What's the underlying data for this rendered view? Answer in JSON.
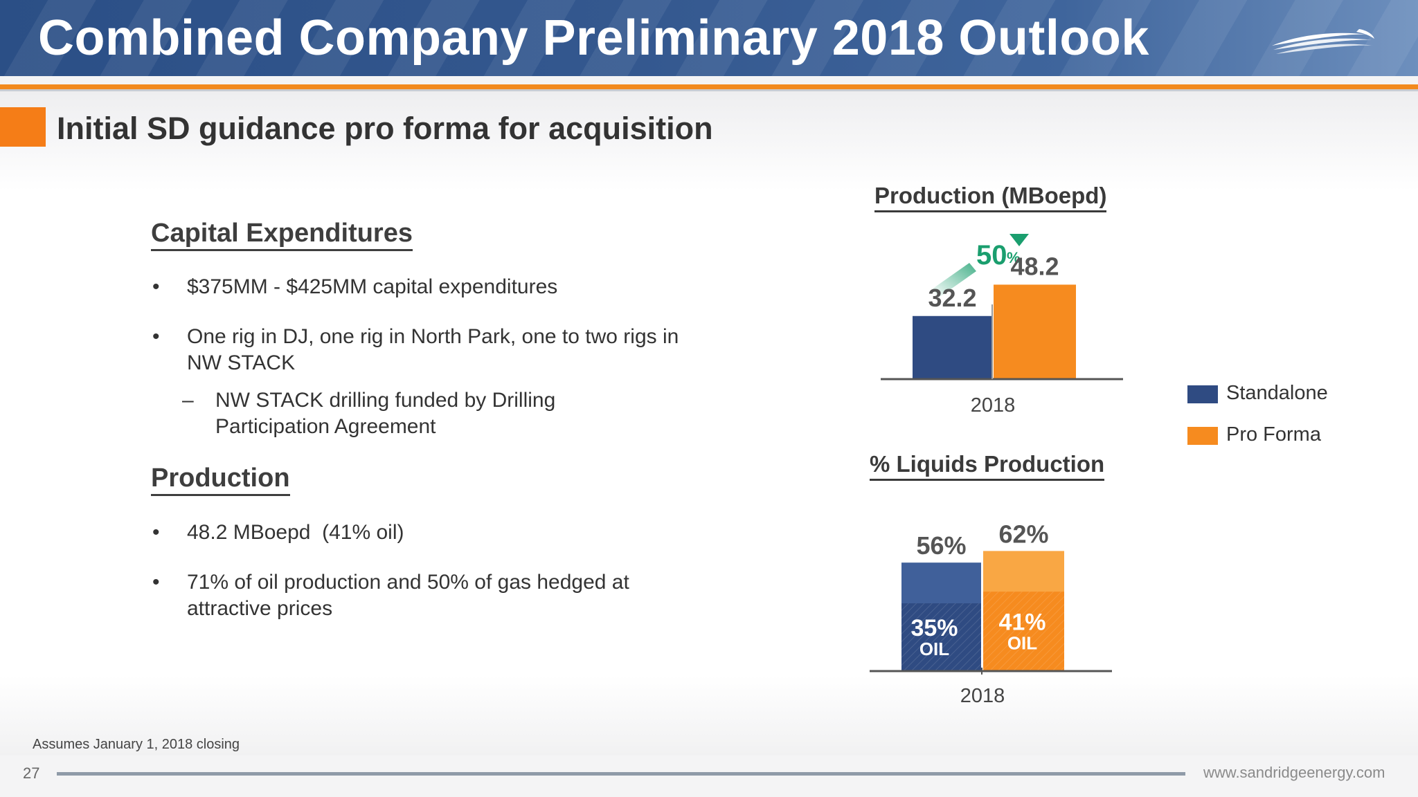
{
  "header": {
    "title": "Combined Company Preliminary 2018 Outlook"
  },
  "subtitle": "Initial SD guidance pro forma for acquisition",
  "sections": {
    "capex": {
      "heading": "Capital Expenditures",
      "bullets": [
        "$375MM - $425MM capital expenditures",
        "One rig in DJ, one rig in North Park, one to two rigs in NW STACK"
      ],
      "sub_bullet": "NW STACK drilling funded by Drilling Participation Agreement"
    },
    "production": {
      "heading": "Production",
      "bullets": [
        "48.2 MBoepd  (41% oil)",
        "71% of oil production and 50% of gas hedged at attractive prices"
      ]
    }
  },
  "bullet_mark": "•",
  "sub_bullet_mark": "–",
  "chart_data": [
    {
      "type": "bar",
      "title": "Production (MBoepd)",
      "categories": [
        "2018"
      ],
      "series": [
        {
          "name": "Standalone",
          "values": [
            32.2
          ]
        },
        {
          "name": "Pro Forma",
          "values": [
            48.2
          ]
        }
      ],
      "value_labels": [
        "32.2",
        "48.2"
      ],
      "annotation": {
        "number": "50",
        "unit": "%"
      },
      "xlabel": "2018",
      "ylim": [
        0,
        60
      ]
    },
    {
      "type": "bar",
      "title": "% Liquids Production",
      "categories": [
        "2018"
      ],
      "series": [
        {
          "name": "Standalone",
          "values": [
            56
          ],
          "oil": 35
        },
        {
          "name": "Pro Forma",
          "values": [
            62
          ],
          "oil": 41
        }
      ],
      "total_labels": [
        "56%",
        "62%"
      ],
      "oil_labels": [
        "35%",
        "41%"
      ],
      "oil_word": "OIL",
      "xlabel": "2018",
      "ylim": [
        0,
        75
      ]
    }
  ],
  "legend": [
    {
      "label": "Standalone",
      "color": "#2f4b82"
    },
    {
      "label": "Pro Forma",
      "color": "#f68b1f"
    }
  ],
  "colors": {
    "standalone": "#2f4b82",
    "standalone_light": "#40609a",
    "proforma": "#f68b1f",
    "proforma_light": "#f9a744",
    "accent_green": "#1a9e6e"
  },
  "footer": {
    "footnote": "Assumes January 1, 2018 closing",
    "page_number": "27",
    "website": "www.sandridgeenergy.com"
  }
}
